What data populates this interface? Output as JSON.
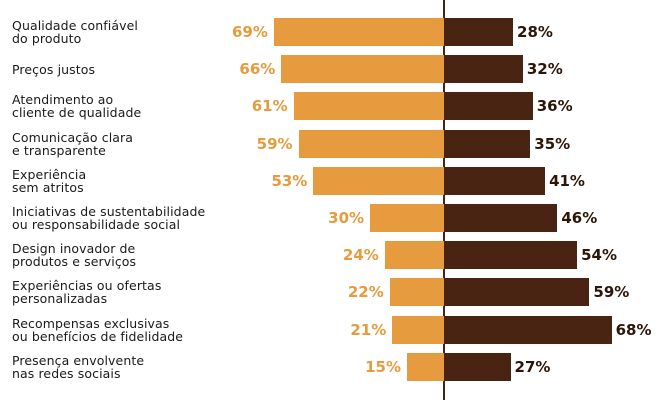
{
  "chart_data": {
    "type": "bar",
    "orientation": "horizontal-diverging",
    "categories": [
      [
        "Qualidade confiável",
        "do produto"
      ],
      [
        "Preços justos"
      ],
      [
        "Atendimento ao",
        "cliente de qualidade"
      ],
      [
        "Comunicação clara",
        "e transparente"
      ],
      [
        "Experiência",
        "sem atritos"
      ],
      [
        "Iniciativas de sustentabilidade",
        "ou responsabilidade social"
      ],
      [
        "Design inovador de",
        "produtos e serviços"
      ],
      [
        "Experiências ou ofertas",
        "personalizadas"
      ],
      [
        "Recompensas exclusivas",
        "ou benefícios de fidelidade"
      ],
      [
        "Presença envolvente",
        "nas redes sociais"
      ]
    ],
    "series": [
      {
        "values": [
          69,
          66,
          61,
          59,
          53,
          30,
          24,
          22,
          21,
          15
        ],
        "color": "#e59b3e",
        "side": "left"
      },
      {
        "values": [
          28,
          32,
          36,
          35,
          41,
          46,
          54,
          59,
          68,
          27
        ],
        "color": "#4a2412",
        "side": "right"
      }
    ],
    "value_suffix": "%",
    "xlim": [
      0,
      100
    ],
    "grid": false
  }
}
